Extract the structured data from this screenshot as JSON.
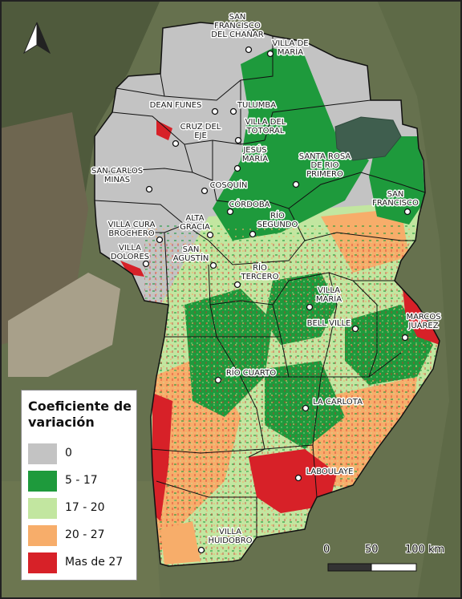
{
  "north_arrow": {
    "icon": "north-arrow-icon"
  },
  "legend": {
    "title_line1": "Coeficiente de",
    "title_line2": "variación",
    "items": [
      {
        "label": "0",
        "color": "#c3c3c3"
      },
      {
        "label": "5 - 17",
        "color": "#1e9a3c"
      },
      {
        "label": "17 - 20",
        "color": "#c2e6a0"
      },
      {
        "label": "20 - 27",
        "color": "#f7ad6a"
      },
      {
        "label": "Mas de 27",
        "color": "#d72128"
      }
    ]
  },
  "scale_bar": {
    "labels": [
      "0",
      "50",
      "100 km"
    ]
  },
  "places": [
    {
      "lines": [
        "SAN",
        "FRANCISCO",
        "DEL CHAÑAR"
      ]
    },
    {
      "lines": [
        "VILLA DE",
        "MARÍA"
      ]
    },
    {
      "lines": [
        "DEAN FUNES"
      ]
    },
    {
      "lines": [
        "TULUMBA"
      ]
    },
    {
      "lines": [
        "CRUZ DEL",
        "EJE"
      ]
    },
    {
      "lines": [
        "VILLA DEL",
        "TOTORAL"
      ]
    },
    {
      "lines": [
        "JESÚS",
        "MARÍA"
      ]
    },
    {
      "lines": [
        "SANTA ROSA",
        "DE RIO",
        "PRIMERO"
      ]
    },
    {
      "lines": [
        "SAN CARLOS",
        "MINAS"
      ]
    },
    {
      "lines": [
        "COSQUÍN"
      ]
    },
    {
      "lines": [
        "SAN",
        "FRANCISCO"
      ]
    },
    {
      "lines": [
        "CÓRDOBA"
      ]
    },
    {
      "lines": [
        "VILLA CURA",
        "BROCHERO"
      ]
    },
    {
      "lines": [
        "ALTA",
        "GRACIA"
      ]
    },
    {
      "lines": [
        "RÍO",
        "SEGUNDO"
      ]
    },
    {
      "lines": [
        "VILLA",
        "DOLORES"
      ]
    },
    {
      "lines": [
        "SAN",
        "AGUSTÍN"
      ]
    },
    {
      "lines": [
        "RÍO",
        "TERCERO"
      ]
    },
    {
      "lines": [
        "VILLA",
        "MARÍA"
      ]
    },
    {
      "lines": [
        "MARCOS",
        "JUÁREZ"
      ]
    },
    {
      "lines": [
        "BELL VILLE"
      ]
    },
    {
      "lines": [
        "RÍO CUARTO"
      ]
    },
    {
      "lines": [
        "LA CARLOTA"
      ]
    },
    {
      "lines": [
        "LABOULAYE"
      ]
    },
    {
      "lines": [
        "VILLA",
        "HUIDOBRO"
      ]
    }
  ]
}
